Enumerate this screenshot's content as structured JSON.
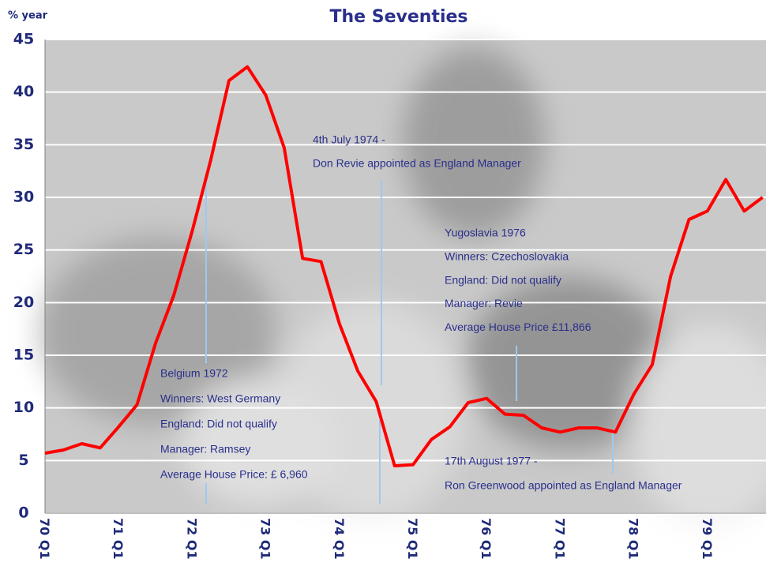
{
  "chart_data": {
    "type": "line",
    "title": "The Seventies",
    "y_label": "% year",
    "categories": [
      "70 Q1",
      null,
      null,
      null,
      "71 Q1",
      null,
      null,
      null,
      "72 Q1",
      null,
      null,
      null,
      "73 Q1",
      null,
      null,
      null,
      "74 Q1",
      null,
      null,
      null,
      "75 Q1",
      null,
      null,
      null,
      "76 Q1",
      null,
      null,
      null,
      "77 Q1",
      null,
      null,
      null,
      "78 Q1",
      null,
      null,
      null,
      "79 Q1",
      null,
      null,
      null
    ],
    "series": [
      {
        "color": "#ff0000",
        "values": [
          5.7,
          6.0,
          6.6,
          6.2,
          8.2,
          10.3,
          16.1,
          20.7,
          26.8,
          33.5,
          41.1,
          42.4,
          39.7,
          34.7,
          24.2,
          23.9,
          18.0,
          13.5,
          10.6,
          4.5,
          4.6,
          7.0,
          8.2,
          10.5,
          10.9,
          9.4,
          9.3,
          8.1,
          7.7,
          8.1,
          8.1,
          7.7,
          11.3,
          14.1,
          22.5,
          27.9,
          28.7,
          31.7,
          28.7,
          30.0
        ]
      }
    ],
    "ylim": [
      0,
      45
    ],
    "yticks": [
      0,
      5,
      10,
      15,
      20,
      25,
      30,
      35,
      40,
      45
    ],
    "grid": true,
    "annotations": [
      {
        "lines": [
          "Belgium 1972",
          "Winners: West Germany",
          "England: Did not qualify",
          "Manager: Ramsey",
          "Average House Price: £ 6,960"
        ]
      },
      {
        "lines": [
          "4th July 1974 -",
          "Don Revie appointed as England Manager"
        ]
      },
      {
        "lines": [
          "Yugoslavia 1976",
          "Winners: Czechoslovakia",
          "England: Did not qualify",
          "Manager: Revie",
          "Average House Price £11,866"
        ]
      },
      {
        "lines": [
          "17th August 1977 -",
          "Ron Greenwood appointed as England Manager"
        ]
      }
    ]
  }
}
